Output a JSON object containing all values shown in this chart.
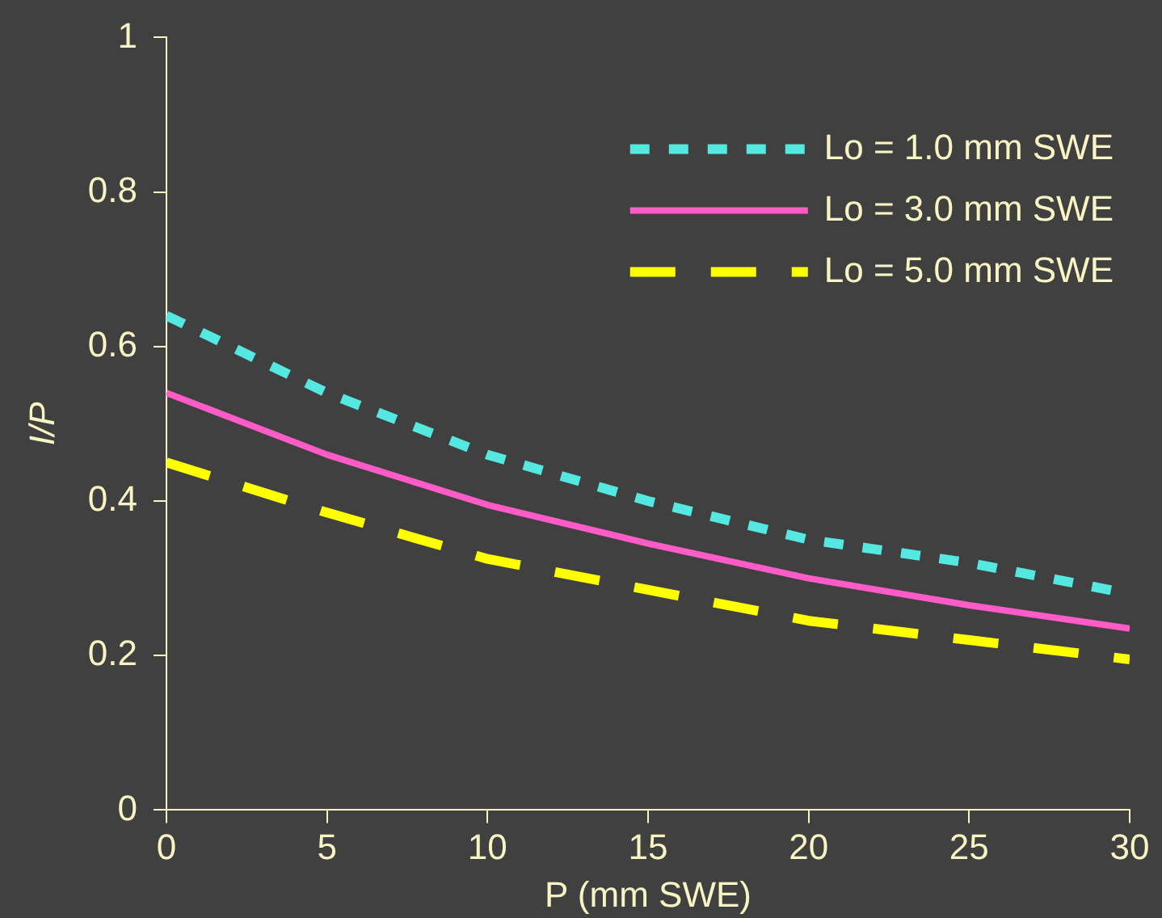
{
  "chart_data": {
    "type": "line",
    "xlabel": "P (mm SWE)",
    "ylabel": "I/P",
    "x": [
      0,
      5,
      10,
      15,
      20,
      25,
      30
    ],
    "series": [
      {
        "name": "Lo = 1.0 mm SWE",
        "color": "#55e8e0",
        "line_style": "dotted",
        "values": [
          0.64,
          0.54,
          0.46,
          0.4,
          0.35,
          0.32,
          0.28
        ]
      },
      {
        "name": "Lo = 3.0 mm SWE",
        "color": "#ff5cc8",
        "line_style": "solid",
        "values": [
          0.54,
          0.46,
          0.395,
          0.345,
          0.3,
          0.265,
          0.235
        ]
      },
      {
        "name": "Lo = 5.0 mm SWE",
        "color": "#ffff00",
        "line_style": "dashed",
        "values": [
          0.45,
          0.385,
          0.325,
          0.285,
          0.245,
          0.22,
          0.195
        ]
      }
    ],
    "xlim": [
      0,
      30
    ],
    "xticks": [
      0,
      5,
      10,
      15,
      20,
      25,
      30
    ],
    "ylim": [
      0,
      1
    ],
    "yticks": [
      0,
      0.2,
      0.4,
      0.6,
      0.8,
      1
    ],
    "grid": false,
    "legend": "top right",
    "marker": "none"
  }
}
